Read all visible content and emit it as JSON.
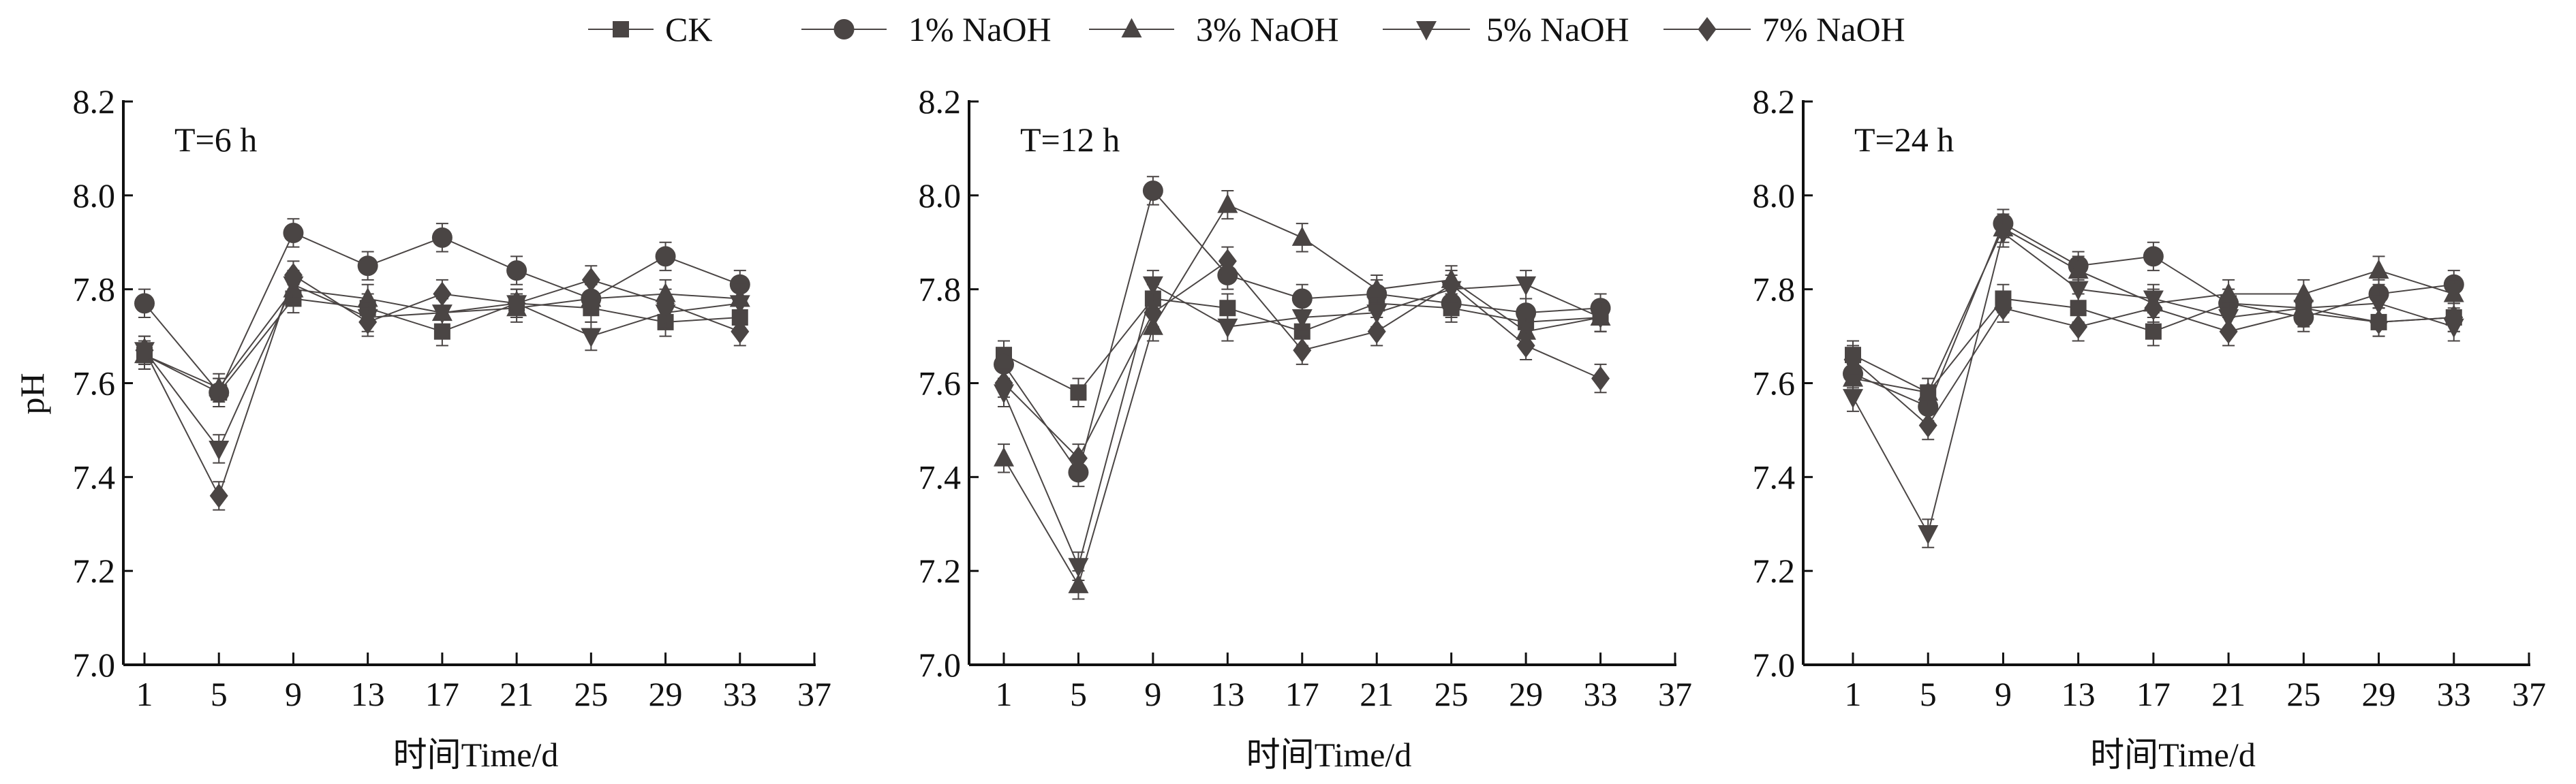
{
  "chart_data": {
    "type": "line",
    "legend": {
      "placement": "top-center",
      "entries": [
        "CK",
        "1% NaOH",
        "3% NaOH",
        "5% NaOH",
        "7% NaOH"
      ]
    },
    "markers": [
      "square",
      "circle",
      "triangle-up",
      "triangle-down",
      "diamond"
    ],
    "color": "#4a4544",
    "error_bar_approx": 0.03,
    "panels": [
      {
        "annotation": "T=6 h",
        "xlabel": "时间Time/d",
        "ylabel": "pH",
        "x": [
          1,
          5,
          9,
          13,
          17,
          21,
          25,
          29,
          33
        ],
        "xticks": [
          "1",
          "5",
          "9",
          "13",
          "17",
          "21",
          "25",
          "29",
          "33",
          "37"
        ],
        "yticks": [
          "7.0",
          "7.2",
          "7.4",
          "7.6",
          "7.8",
          "8.0",
          "8.2"
        ],
        "xlim": [
          1,
          37
        ],
        "ylim": [
          7.0,
          8.2
        ],
        "series": [
          {
            "name": "CK",
            "values": [
              7.66,
              7.58,
              7.78,
              7.76,
              7.71,
              7.77,
              7.76,
              7.73,
              7.74
            ]
          },
          {
            "name": "1% NaOH",
            "values": [
              7.77,
              7.58,
              7.92,
              7.85,
              7.91,
              7.84,
              7.78,
              7.87,
              7.81
            ]
          },
          {
            "name": "3% NaOH",
            "values": [
              7.66,
              7.59,
              7.8,
              7.78,
              7.75,
              7.76,
              7.78,
              7.79,
              7.78
            ]
          },
          {
            "name": "5% NaOH",
            "values": [
              7.67,
              7.46,
              7.81,
              7.74,
              7.75,
              7.77,
              7.7,
              7.75,
              7.77
            ]
          },
          {
            "name": "7% NaOH",
            "values": [
              7.67,
              7.36,
              7.83,
              7.73,
              7.79,
              7.77,
              7.82,
              7.77,
              7.71
            ]
          }
        ]
      },
      {
        "annotation": "T=12 h",
        "xlabel": "时间Time/d",
        "ylabel": "",
        "x": [
          1,
          5,
          9,
          13,
          17,
          21,
          25,
          29,
          33
        ],
        "xticks": [
          "1",
          "5",
          "9",
          "13",
          "17",
          "21",
          "25",
          "29",
          "33",
          "37"
        ],
        "yticks": [
          "7.0",
          "7.2",
          "7.4",
          "7.6",
          "7.8",
          "8.0",
          "8.2"
        ],
        "xlim": [
          1,
          37
        ],
        "ylim": [
          7.0,
          8.2
        ],
        "series": [
          {
            "name": "CK",
            "values": [
              7.66,
              7.58,
              7.78,
              7.76,
              7.71,
              7.77,
              7.76,
              7.73,
              7.74
            ]
          },
          {
            "name": "1% NaOH",
            "values": [
              7.64,
              7.41,
              8.01,
              7.83,
              7.78,
              7.79,
              7.77,
              7.75,
              7.76
            ]
          },
          {
            "name": "3% NaOH",
            "values": [
              7.44,
              7.17,
              7.72,
              7.98,
              7.91,
              7.8,
              7.82,
              7.71,
              7.74
            ]
          },
          {
            "name": "5% NaOH",
            "values": [
              7.58,
              7.21,
              7.81,
              7.72,
              7.74,
              7.75,
              7.8,
              7.81,
              7.74
            ]
          },
          {
            "name": "7% NaOH",
            "values": [
              7.6,
              7.44,
              7.75,
              7.86,
              7.67,
              7.71,
              7.81,
              7.68,
              7.61
            ]
          }
        ]
      },
      {
        "annotation": "T=24 h",
        "xlabel": "时间Time/d",
        "ylabel": "",
        "x": [
          1,
          5,
          9,
          13,
          17,
          21,
          25,
          29,
          33
        ],
        "xticks": [
          "1",
          "5",
          "9",
          "13",
          "17",
          "21",
          "25",
          "29",
          "33",
          "37"
        ],
        "yticks": [
          "7.0",
          "7.2",
          "7.4",
          "7.6",
          "7.8",
          "8.0",
          "8.2"
        ],
        "xlim": [
          1,
          37
        ],
        "ylim": [
          7.0,
          8.2
        ],
        "series": [
          {
            "name": "CK",
            "values": [
              7.66,
              7.58,
              7.78,
              7.76,
              7.71,
              7.77,
              7.76,
              7.73,
              7.74
            ]
          },
          {
            "name": "1% NaOH",
            "values": [
              7.62,
              7.55,
              7.94,
              7.85,
              7.87,
              7.77,
              7.74,
              7.79,
              7.81
            ]
          },
          {
            "name": "3% NaOH",
            "values": [
              7.61,
              7.58,
              7.93,
              7.84,
              7.77,
              7.79,
              7.79,
              7.84,
              7.79
            ]
          },
          {
            "name": "5% NaOH",
            "values": [
              7.57,
              7.28,
              7.92,
              7.8,
              7.78,
              7.74,
              7.76,
              7.77,
              7.72
            ]
          },
          {
            "name": "7% NaOH",
            "values": [
              7.65,
              7.51,
              7.76,
              7.72,
              7.76,
              7.71,
              7.75,
              7.73,
              7.74
            ]
          }
        ]
      }
    ]
  }
}
